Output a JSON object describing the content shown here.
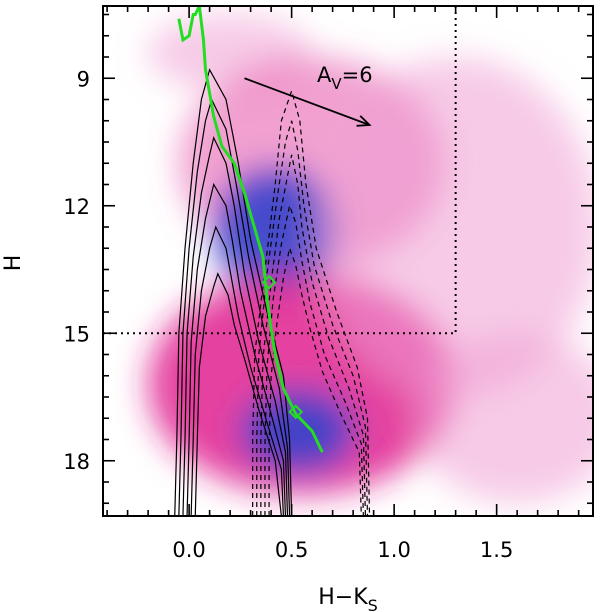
{
  "chart_data": {
    "type": "heatmap",
    "xlabel": "H−K",
    "xlabel_sub": "S",
    "ylabel": "H",
    "xlim": [
      -0.42,
      1.97
    ],
    "ylim": [
      19.3,
      7.3
    ],
    "x_ticks": [
      {
        "value": 0.0,
        "label": "0.0"
      },
      {
        "value": 0.5,
        "label": "0.5"
      },
      {
        "value": 1.0,
        "label": "1.0"
      },
      {
        "value": 1.5,
        "label": "1.5"
      }
    ],
    "y_ticks": [
      {
        "value": 9,
        "label": "9"
      },
      {
        "value": 12,
        "label": "12"
      },
      {
        "value": 15,
        "label": "15"
      },
      {
        "value": 18,
        "label": "18"
      }
    ],
    "annotation": {
      "text_main": "A",
      "text_sub": "V",
      "text_tail": "=6"
    },
    "reddening_vector": {
      "x": [
        0.27,
        0.88
      ],
      "y": [
        9.0,
        10.1
      ]
    },
    "limit_lines": {
      "x_cut": 1.3,
      "h_cut": 15.0
    },
    "density_blobs": [
      {
        "x": 0.2,
        "y": 8.4,
        "rx": 0.4,
        "ry": 0.9,
        "level": 0.22
      },
      {
        "x": 0.6,
        "y": 11.0,
        "rx": 0.65,
        "ry": 2.5,
        "level": 0.3
      },
      {
        "x": 0.42,
        "y": 12.6,
        "rx": 0.3,
        "ry": 1.5,
        "level": 0.75
      },
      {
        "x": 0.55,
        "y": 16.2,
        "rx": 0.75,
        "ry": 2.6,
        "level": 0.55
      },
      {
        "x": 0.53,
        "y": 17.3,
        "rx": 0.28,
        "ry": 1.0,
        "level": 0.95
      },
      {
        "x": 1.3,
        "y": 12.5,
        "rx": 0.7,
        "ry": 4.0,
        "level": 0.18
      },
      {
        "x": 1.6,
        "y": 17.0,
        "rx": 0.5,
        "ry": 2.0,
        "level": 0.15
      }
    ],
    "model_track": {
      "color": "#22dd22",
      "x": [
        -0.05,
        -0.03,
        0.0,
        0.02,
        0.03,
        0.05,
        0.07,
        0.08,
        0.12,
        0.16,
        0.22,
        0.27,
        0.3,
        0.33,
        0.36,
        0.37,
        0.38,
        0.4,
        0.42,
        0.44,
        0.46,
        0.49,
        0.52,
        0.56,
        0.6,
        0.63,
        0.65
      ],
      "y": [
        7.6,
        8.1,
        8.0,
        7.5,
        7.5,
        7.3,
        8.1,
        8.8,
        9.9,
        10.6,
        11.0,
        11.7,
        12.2,
        12.7,
        13.2,
        13.7,
        14.2,
        14.9,
        15.5,
        15.9,
        16.3,
        16.6,
        16.9,
        17.1,
        17.3,
        17.6,
        17.8
      ],
      "markers": [
        {
          "x": 0.39,
          "y": 13.8
        },
        {
          "x": 0.52,
          "y": 16.85
        }
      ]
    },
    "solid_contours": [
      {
        "level": 1,
        "left": [
          [
            -0.07,
            19.3
          ],
          [
            -0.06,
            17.5
          ],
          [
            -0.05,
            15.0
          ],
          [
            -0.02,
            13.0
          ],
          [
            0.02,
            11.0
          ],
          [
            0.06,
            9.5
          ],
          [
            0.1,
            8.8
          ]
        ],
        "right": [
          [
            0.1,
            8.8
          ],
          [
            0.18,
            9.5
          ],
          [
            0.24,
            11.0
          ],
          [
            0.3,
            12.8
          ],
          [
            0.38,
            14.5
          ],
          [
            0.46,
            16.0
          ],
          [
            0.49,
            17.5
          ],
          [
            0.5,
            19.3
          ]
        ]
      },
      {
        "level": 2,
        "left": [
          [
            -0.05,
            19.3
          ],
          [
            -0.04,
            17.5
          ],
          [
            -0.03,
            15.0
          ],
          [
            0.0,
            13.0
          ],
          [
            0.04,
            11.2
          ],
          [
            0.08,
            10.0
          ],
          [
            0.11,
            9.5
          ]
        ],
        "right": [
          [
            0.11,
            9.5
          ],
          [
            0.18,
            10.2
          ],
          [
            0.23,
            11.5
          ],
          [
            0.29,
            13.2
          ],
          [
            0.36,
            14.8
          ],
          [
            0.44,
            16.3
          ],
          [
            0.48,
            17.7
          ],
          [
            0.49,
            19.3
          ]
        ]
      },
      {
        "level": 3,
        "left": [
          [
            -0.03,
            19.3
          ],
          [
            -0.02,
            17.5
          ],
          [
            -0.01,
            15.0
          ],
          [
            0.02,
            13.2
          ],
          [
            0.06,
            11.7
          ],
          [
            0.1,
            10.8
          ],
          [
            0.12,
            10.4
          ]
        ],
        "right": [
          [
            0.12,
            10.4
          ],
          [
            0.18,
            11.0
          ],
          [
            0.22,
            12.0
          ],
          [
            0.27,
            13.6
          ],
          [
            0.34,
            15.2
          ],
          [
            0.42,
            16.6
          ],
          [
            0.47,
            17.8
          ],
          [
            0.48,
            19.3
          ]
        ]
      },
      {
        "level": 4,
        "left": [
          [
            -0.01,
            19.3
          ],
          [
            0.0,
            17.5
          ],
          [
            0.01,
            15.2
          ],
          [
            0.04,
            13.5
          ],
          [
            0.08,
            12.3
          ],
          [
            0.12,
            11.5
          ]
        ],
        "right": [
          [
            0.12,
            11.5
          ],
          [
            0.18,
            12.0
          ],
          [
            0.21,
            12.8
          ],
          [
            0.25,
            14.0
          ],
          [
            0.32,
            15.5
          ],
          [
            0.4,
            16.9
          ],
          [
            0.46,
            18.0
          ],
          [
            0.47,
            19.3
          ]
        ]
      },
      {
        "level": 5,
        "left": [
          [
            0.01,
            19.3
          ],
          [
            0.02,
            17.5
          ],
          [
            0.03,
            15.5
          ],
          [
            0.06,
            14.0
          ],
          [
            0.1,
            13.0
          ],
          [
            0.13,
            12.5
          ]
        ],
        "right": [
          [
            0.13,
            12.5
          ],
          [
            0.18,
            13.0
          ],
          [
            0.21,
            13.8
          ],
          [
            0.24,
            14.6
          ],
          [
            0.3,
            15.8
          ],
          [
            0.38,
            17.1
          ],
          [
            0.45,
            18.2
          ],
          [
            0.46,
            19.3
          ]
        ]
      },
      {
        "level": 6,
        "left": [
          [
            0.03,
            19.3
          ],
          [
            0.04,
            17.5
          ],
          [
            0.05,
            15.8
          ],
          [
            0.08,
            14.6
          ],
          [
            0.12,
            13.9
          ],
          [
            0.14,
            13.6
          ]
        ],
        "right": [
          [
            0.14,
            13.6
          ],
          [
            0.19,
            14.1
          ],
          [
            0.22,
            14.8
          ],
          [
            0.27,
            15.6
          ],
          [
            0.34,
            16.8
          ],
          [
            0.42,
            18.0
          ],
          [
            0.45,
            19.3
          ]
        ]
      }
    ],
    "dashed_contours": [
      {
        "level": 1,
        "left": [
          [
            0.31,
            19.3
          ],
          [
            0.31,
            17.5
          ],
          [
            0.32,
            15.5
          ],
          [
            0.37,
            13.5
          ],
          [
            0.42,
            11.5
          ],
          [
            0.45,
            10.0
          ],
          [
            0.5,
            9.3
          ]
        ],
        "right": [
          [
            0.5,
            9.3
          ],
          [
            0.54,
            10.0
          ],
          [
            0.57,
            11.5
          ],
          [
            0.62,
            13.0
          ],
          [
            0.72,
            14.5
          ],
          [
            0.82,
            15.8
          ],
          [
            0.87,
            17.0
          ],
          [
            0.88,
            19.3
          ]
        ]
      },
      {
        "level": 2,
        "left": [
          [
            0.33,
            19.3
          ],
          [
            0.33,
            17.5
          ],
          [
            0.34,
            15.5
          ],
          [
            0.38,
            13.6
          ],
          [
            0.43,
            11.8
          ],
          [
            0.47,
            10.5
          ],
          [
            0.5,
            10.0
          ]
        ],
        "right": [
          [
            0.5,
            10.0
          ],
          [
            0.53,
            10.7
          ],
          [
            0.56,
            12.0
          ],
          [
            0.61,
            13.4
          ],
          [
            0.7,
            14.8
          ],
          [
            0.8,
            16.0
          ],
          [
            0.86,
            17.2
          ],
          [
            0.87,
            19.3
          ]
        ]
      },
      {
        "level": 3,
        "left": [
          [
            0.35,
            19.3
          ],
          [
            0.35,
            17.5
          ],
          [
            0.36,
            15.6
          ],
          [
            0.4,
            13.8
          ],
          [
            0.44,
            12.3
          ],
          [
            0.48,
            11.3
          ],
          [
            0.5,
            10.8
          ]
        ],
        "right": [
          [
            0.5,
            10.8
          ],
          [
            0.53,
            11.5
          ],
          [
            0.55,
            12.5
          ],
          [
            0.6,
            13.8
          ],
          [
            0.68,
            15.1
          ],
          [
            0.78,
            16.3
          ],
          [
            0.85,
            17.4
          ],
          [
            0.86,
            19.3
          ]
        ]
      },
      {
        "level": 4,
        "left": [
          [
            0.37,
            19.3
          ],
          [
            0.37,
            17.6
          ],
          [
            0.38,
            15.8
          ],
          [
            0.41,
            14.2
          ],
          [
            0.45,
            12.9
          ],
          [
            0.49,
            12.0
          ]
        ],
        "right": [
          [
            0.49,
            12.0
          ],
          [
            0.52,
            12.4
          ],
          [
            0.55,
            13.3
          ],
          [
            0.59,
            14.3
          ],
          [
            0.66,
            15.5
          ],
          [
            0.76,
            16.6
          ],
          [
            0.84,
            17.6
          ],
          [
            0.85,
            19.3
          ]
        ]
      },
      {
        "level": 5,
        "left": [
          [
            0.39,
            19.3
          ],
          [
            0.39,
            17.7
          ],
          [
            0.4,
            16.0
          ],
          [
            0.43,
            14.7
          ],
          [
            0.46,
            13.7
          ],
          [
            0.49,
            13.0
          ]
        ],
        "right": [
          [
            0.49,
            13.0
          ],
          [
            0.52,
            13.4
          ],
          [
            0.55,
            14.1
          ],
          [
            0.59,
            14.9
          ],
          [
            0.65,
            15.9
          ],
          [
            0.74,
            16.9
          ],
          [
            0.83,
            17.8
          ],
          [
            0.84,
            19.3
          ]
        ]
      }
    ],
    "grid": false,
    "legend": "none"
  }
}
